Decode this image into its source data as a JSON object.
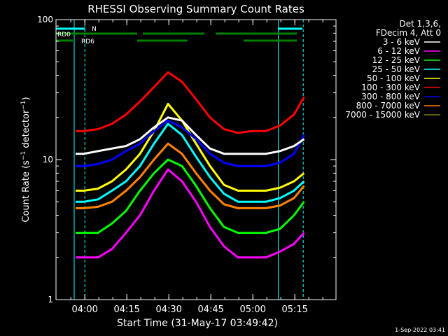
{
  "chart_data": {
    "type": "line",
    "title": "RHESSI Observing Summary Count Rates",
    "xlabel": "Start Time (31-May-17 03:49:42)",
    "ylabel": "Count Rate (s⁻¹ detector⁻¹)",
    "y_scale": "log",
    "ylim": [
      1,
      100
    ],
    "xlim_minutes": [
      0,
      100
    ],
    "x_ticks": [
      {
        "label": "04:00",
        "minute": 10.3
      },
      {
        "label": "04:15",
        "minute": 25.3
      },
      {
        "label": "04:30",
        "minute": 40.3
      },
      {
        "label": "04:45",
        "minute": 55.3
      },
      {
        "label": "05:00",
        "minute": 70.3
      },
      {
        "label": "05:15",
        "minute": 85.3
      }
    ],
    "y_ticks": [
      {
        "label": "1",
        "value": 1
      },
      {
        "label": "10",
        "value": 10
      },
      {
        "label": "100",
        "value": 100
      }
    ],
    "legend": {
      "header": [
        "Det 1,3,6,",
        "FDecim 4, Att 0"
      ],
      "placement": "right"
    },
    "x_minutes": [
      7,
      10,
      15,
      20,
      25,
      30,
      35,
      40,
      45,
      50,
      55,
      60,
      65,
      70,
      75,
      80,
      85,
      88.6
    ],
    "series": [
      {
        "name": "3 - 6 keV",
        "color": "#ffffff",
        "values": [
          11,
          11,
          11.5,
          12,
          12.5,
          14,
          17,
          20,
          19,
          15,
          12,
          11,
          11,
          11,
          11,
          11.5,
          12.5,
          14
        ]
      },
      {
        "name": "6 - 12 keV",
        "color": "#ff00ff",
        "values": [
          2,
          2,
          2,
          2.3,
          3,
          4,
          6,
          8.5,
          7,
          5,
          3.3,
          2.4,
          2,
          2,
          2,
          2.2,
          2.5,
          3
        ]
      },
      {
        "name": "12 - 25 keV",
        "color": "#00ff00",
        "values": [
          3,
          3,
          3,
          3.5,
          4.3,
          6,
          8,
          10,
          9,
          6.5,
          4.5,
          3.3,
          3,
          3,
          3,
          3.2,
          4,
          5
        ]
      },
      {
        "name": "25 - 50 keV",
        "color": "#00ffff",
        "values": [
          5,
          5,
          5.2,
          6,
          7,
          9,
          13,
          18,
          15,
          10.5,
          7.5,
          5.7,
          5,
          5,
          5,
          5.3,
          6,
          7
        ]
      },
      {
        "name": "50 - 100 keV",
        "color": "#ffff00",
        "values": [
          6,
          6,
          6.2,
          7,
          8.5,
          11,
          16,
          25,
          19,
          13,
          9,
          6.6,
          6,
          6,
          6,
          6.3,
          7,
          8
        ]
      },
      {
        "name": "100 - 300 keV",
        "color": "#ff0000",
        "values": [
          16,
          16,
          16.5,
          18,
          21,
          26,
          33,
          42,
          36,
          27,
          20,
          16.5,
          15.5,
          16,
          16,
          17.5,
          21,
          28
        ]
      },
      {
        "name": "300 - 800 keV",
        "color": "#0000ff",
        "values": [
          9,
          9,
          9.3,
          10,
          11.5,
          13,
          16,
          19,
          17,
          14,
          11,
          9.5,
          9,
          9,
          9,
          9.5,
          11,
          15
        ]
      },
      {
        "name": "800 - 7000 keV",
        "color": "#ff8000",
        "values": [
          4.5,
          4.5,
          4.6,
          5,
          6,
          7.5,
          10,
          13,
          11,
          8,
          6,
          4.8,
          4.5,
          4.5,
          4.5,
          4.7,
          5.3,
          6.5
        ]
      },
      {
        "name": "7000 - 15000 keV",
        "color": "#7f7f00",
        "values": [
          4.5,
          4.5,
          4.6,
          5,
          6,
          7.5,
          10,
          13,
          11,
          8,
          6,
          4.8,
          4.5,
          4.5,
          4.5,
          4.7,
          5.3,
          6.5
        ]
      }
    ],
    "markers": {
      "N_label": "N",
      "N_bars_minutes": [
        [
          0,
          10.3
        ],
        [
          79.4,
          88
        ]
      ],
      "RD0_label": "RD0",
      "RD0_bars_minutes": [
        [
          0,
          29
        ],
        [
          31,
          53
        ],
        [
          57,
          86
        ]
      ],
      "RD6_label": "RD6",
      "RD6_bars_minutes": [
        [
          0,
          6
        ],
        [
          29,
          47
        ],
        [
          67,
          86
        ]
      ],
      "solid_vlines_minutes": [
        6.5,
        79.4
      ],
      "dashed_vlines_minutes": [
        10.3,
        88.3
      ]
    }
  },
  "footer": {
    "date": "1-Sep-2022 03:41"
  }
}
